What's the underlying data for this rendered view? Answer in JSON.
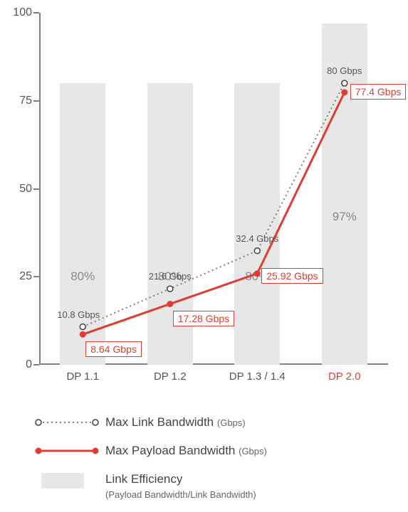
{
  "chart": {
    "type": "combo-bar-line",
    "ylim": [
      0,
      100
    ],
    "ytick_step": 25,
    "yticks": [
      0,
      25,
      50,
      75,
      100
    ],
    "background_color": "#ffffff",
    "axis_color": "#808080",
    "ytick_fontsize": 16,
    "xtick_fontsize": 15,
    "categories": [
      {
        "label": "DP 1.1",
        "highlight": false
      },
      {
        "label": "DP 1.2",
        "highlight": false
      },
      {
        "label": "DP 1.3 / 1.4",
        "highlight": false
      },
      {
        "label": "DP 2.0",
        "highlight": true
      }
    ],
    "bars": {
      "color": "#e7e7e7",
      "text_color": "#888888",
      "width_fraction": 0.52,
      "label_y": 45,
      "values": [
        80,
        80,
        80,
        97
      ],
      "texts": [
        "80%",
        "80%",
        "80%",
        "97%"
      ]
    },
    "series_link": {
      "name": "Max Link Bandwidth",
      "unit": "Gbps",
      "color": "#808080",
      "line_width": 2,
      "dash": "2 4",
      "marker": "open-circle",
      "marker_stroke": "#404040",
      "marker_fill": "#ffffff",
      "marker_radius": 4,
      "values": [
        10.8,
        21.6,
        32.4,
        80
      ],
      "labels": [
        "10.8 Gbps",
        "21.6 Gbps",
        "32.4 Gbps",
        "80 Gbps"
      ]
    },
    "series_payload": {
      "name": "Max Payload Bandwidth",
      "unit": "Gbps",
      "color": "#e03c31",
      "line_width": 3,
      "marker": "solid-circle",
      "marker_radius": 4,
      "values": [
        8.64,
        17.28,
        25.92,
        77.4
      ],
      "labels": [
        "8.64 Gbps",
        "17.28 Gbps",
        "25.92 Gbps",
        "77.4 Gbps"
      ],
      "label_border_color": "#e03c31",
      "label_text_color": "#e03c31"
    }
  },
  "legend": {
    "link": {
      "title": "Max Link Bandwidth ",
      "sub": "(Gbps)"
    },
    "payload": {
      "title": "Max Payload Bandwidth ",
      "sub": "(Gbps)"
    },
    "bar": {
      "title": "Link Efficiency",
      "sub": "(Payload Bandwidth/Link Bandwidth)"
    }
  }
}
